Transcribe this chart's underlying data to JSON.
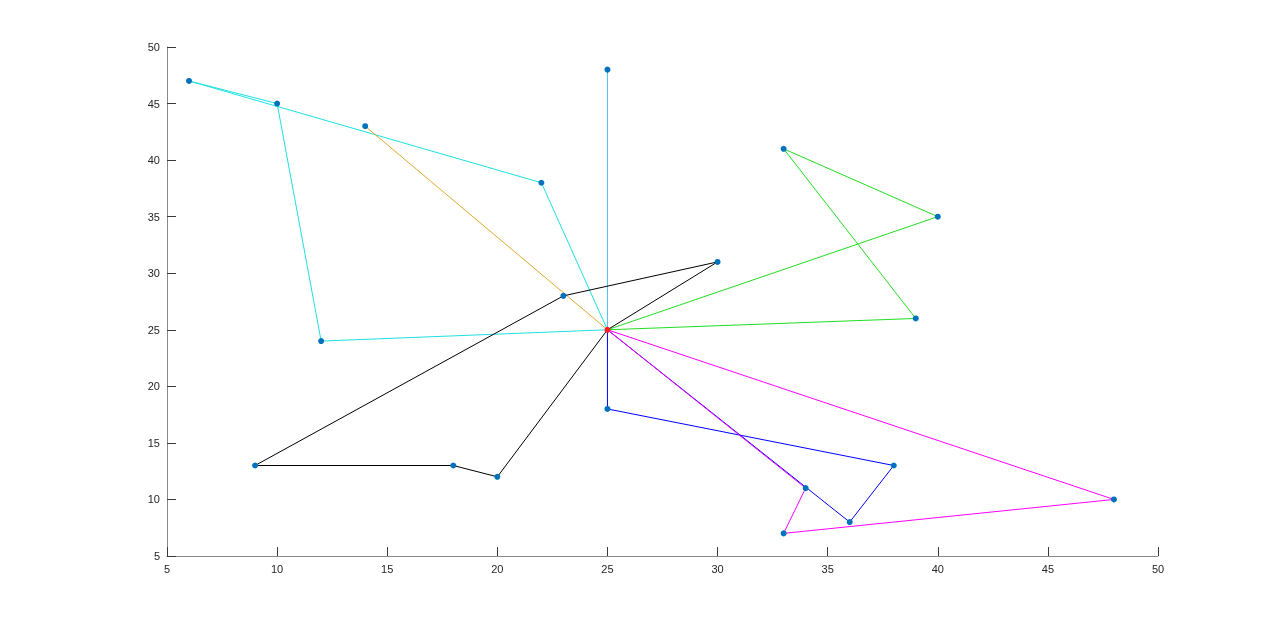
{
  "chart_data": {
    "type": "line",
    "xlim": [
      5,
      50
    ],
    "ylim": [
      5,
      50
    ],
    "xticks": [
      5,
      10,
      15,
      20,
      25,
      30,
      35,
      40,
      45,
      50
    ],
    "yticks": [
      5,
      10,
      15,
      20,
      25,
      30,
      35,
      40,
      45,
      50
    ],
    "grid": false,
    "marker": "none",
    "line_style": "solid",
    "series": [
      {
        "color": "#1fe0e0",
        "x": [
          6,
          22,
          25
        ],
        "values": [
          47,
          38,
          25
        ]
      },
      {
        "color": "#1fe0e0",
        "x": [
          6,
          10,
          12,
          25
        ],
        "values": [
          47,
          45,
          24,
          25
        ]
      },
      {
        "color": "#e0a830",
        "x": [
          14,
          25
        ],
        "values": [
          43,
          25
        ]
      },
      {
        "color": "#4dbeee",
        "x": [
          25,
          25
        ],
        "values": [
          25,
          48
        ]
      },
      {
        "color": "#22dd22",
        "x": [
          25,
          40
        ],
        "values": [
          25,
          35
        ]
      },
      {
        "color": "#22dd22",
        "x": [
          33,
          40
        ],
        "values": [
          41,
          35
        ]
      },
      {
        "color": "#22dd22",
        "x": [
          33,
          39
        ],
        "values": [
          41,
          26
        ]
      },
      {
        "color": "#22dd22",
        "x": [
          25,
          39
        ],
        "values": [
          25,
          26
        ]
      },
      {
        "color": "#000000",
        "x": [
          9,
          18,
          20,
          25,
          30
        ],
        "values": [
          13,
          13,
          12,
          25,
          31
        ]
      },
      {
        "color": "#000000",
        "x": [
          9,
          23,
          30
        ],
        "values": [
          13,
          28,
          31
        ]
      },
      {
        "color": "#0000ff",
        "x": [
          25,
          25
        ],
        "values": [
          25,
          18
        ]
      },
      {
        "color": "#0000ff",
        "x": [
          25,
          38
        ],
        "values": [
          18,
          13
        ]
      },
      {
        "color": "#0000ff",
        "x": [
          25,
          36,
          38
        ],
        "values": [
          25,
          8,
          13
        ]
      },
      {
        "color": "#ff00ff",
        "x": [
          25,
          34
        ],
        "values": [
          25,
          11
        ]
      },
      {
        "color": "#ff00ff",
        "x": [
          33,
          34
        ],
        "values": [
          7,
          11
        ]
      },
      {
        "color": "#ff00ff",
        "x": [
          33,
          48
        ],
        "values": [
          7,
          10
        ]
      },
      {
        "color": "#ff00ff",
        "x": [
          25,
          48
        ],
        "values": [
          25,
          10
        ]
      },
      {
        "type": "scatter",
        "marker": "circle",
        "color": "#0072bd",
        "x": [
          22,
          6,
          10,
          12,
          14,
          25,
          40,
          33,
          39,
          30,
          23,
          9,
          18,
          20,
          25,
          38,
          36,
          34,
          33,
          48
        ],
        "values": [
          38,
          47,
          45,
          24,
          43,
          48,
          35,
          41,
          26,
          31,
          28,
          13,
          13,
          12,
          18,
          13,
          8,
          11,
          7,
          10
        ]
      },
      {
        "type": "scatter",
        "marker": "circle",
        "color": "#ff2020",
        "x": [
          25
        ],
        "values": [
          25
        ]
      }
    ]
  }
}
